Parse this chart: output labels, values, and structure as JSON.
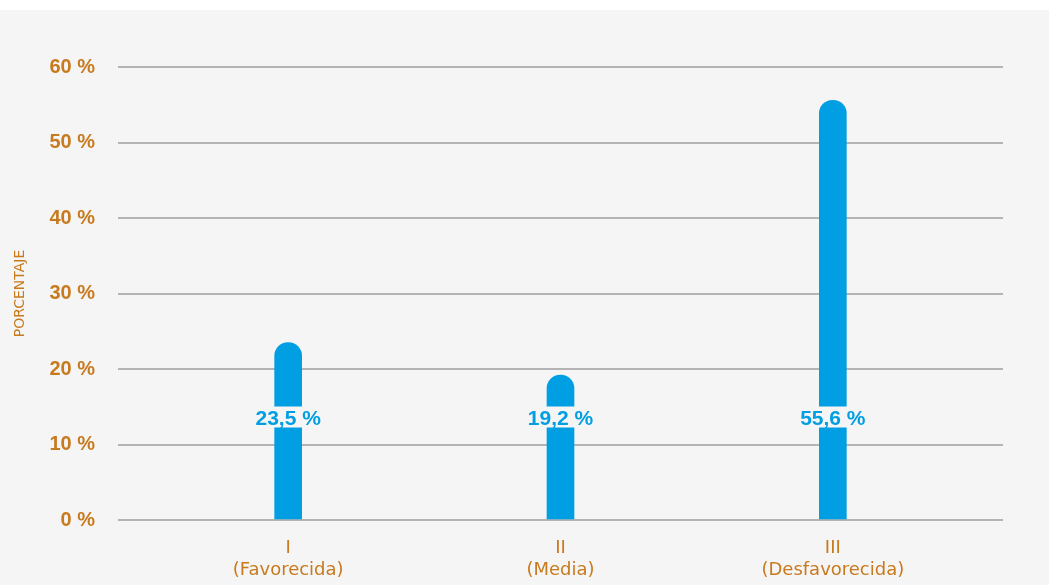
{
  "chart_data": {
    "type": "bar",
    "ylabel": "PORCENTAJE",
    "categories": [
      "I\n(Favorecida)",
      "II\n(Media)",
      "III\n(Desfavorecida)"
    ],
    "values": [
      23.5,
      19.2,
      55.6
    ],
    "color": "#009fe3",
    "value_labels": [
      "23,5 %",
      "19,2 %",
      "55,6 %"
    ],
    "ylim": [
      0,
      60
    ],
    "yticks": [
      {
        "value": 0,
        "label": "0 %"
      },
      {
        "value": 10,
        "label": "10 %"
      },
      {
        "value": 20,
        "label": "20 %"
      },
      {
        "value": 30,
        "label": "30 %"
      },
      {
        "value": 40,
        "label": "40 %"
      },
      {
        "value": 50,
        "label": "50 %"
      },
      {
        "value": 60,
        "label": "60 %"
      }
    ],
    "grid": "y",
    "legend": false
  }
}
